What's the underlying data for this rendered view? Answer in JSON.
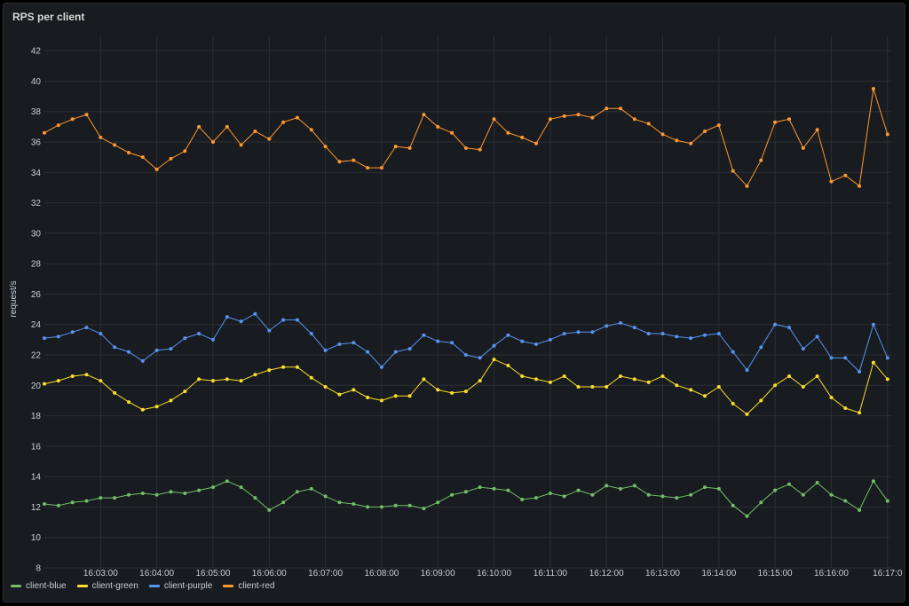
{
  "panel": {
    "title": "RPS per client"
  },
  "chart_data": {
    "type": "line",
    "title": "RPS per client",
    "xlabel": "",
    "ylabel": "request/s",
    "ylim": [
      8,
      43
    ],
    "yticks": [
      8,
      10,
      12,
      14,
      16,
      18,
      20,
      22,
      24,
      26,
      28,
      30,
      32,
      34,
      36,
      38,
      40,
      42
    ],
    "xlim": [
      "16:02:00",
      "16:17:00"
    ],
    "xticks": [
      "16:03:00",
      "16:04:00",
      "16:05:00",
      "16:06:00",
      "16:07:00",
      "16:08:00",
      "16:09:00",
      "16:10:00",
      "16:11:00",
      "16:12:00",
      "16:13:00",
      "16:14:00",
      "16:15:00",
      "16:16:00",
      "16:17:0"
    ],
    "x_start": "16:02:00",
    "x_step_seconds": 15,
    "grid": true,
    "legend_position": "bottom-left",
    "series": [
      {
        "name": "client-blue",
        "color": "#73bf69",
        "values": [
          12.2,
          12.1,
          12.3,
          12.4,
          12.6,
          12.6,
          12.8,
          12.9,
          12.8,
          13.0,
          12.9,
          13.1,
          13.3,
          13.7,
          13.3,
          12.6,
          11.8,
          12.3,
          13.0,
          13.2,
          12.7,
          12.3,
          12.2,
          12.0,
          12.0,
          12.1,
          12.1,
          11.9,
          12.3,
          12.8,
          13.0,
          13.3,
          13.2,
          13.1,
          12.5,
          12.6,
          12.9,
          12.7,
          13.1,
          12.8,
          13.4,
          13.2,
          13.4,
          12.8,
          12.7,
          12.6,
          12.8,
          13.3,
          13.2,
          12.1,
          11.4,
          12.3,
          13.1,
          13.5,
          12.8,
          13.6,
          12.8,
          12.4,
          11.8,
          13.7,
          12.4
        ]
      },
      {
        "name": "client-green",
        "color": "#fade2a",
        "values": [
          20.1,
          20.3,
          20.6,
          20.7,
          20.3,
          19.5,
          18.9,
          18.4,
          18.6,
          19.0,
          19.6,
          20.4,
          20.3,
          20.4,
          20.3,
          20.7,
          21.0,
          21.2,
          21.2,
          20.5,
          19.9,
          19.4,
          19.7,
          19.2,
          19.0,
          19.3,
          19.3,
          20.4,
          19.7,
          19.5,
          19.6,
          20.3,
          21.7,
          21.3,
          20.6,
          20.4,
          20.2,
          20.6,
          19.9,
          19.9,
          19.9,
          20.6,
          20.4,
          20.2,
          20.6,
          20.0,
          19.7,
          19.3,
          19.9,
          18.8,
          18.1,
          19.0,
          20.0,
          20.6,
          19.9,
          20.6,
          19.2,
          18.5,
          18.2,
          21.5,
          20.4
        ]
      },
      {
        "name": "client-purple",
        "color": "#5794f2",
        "values": [
          23.1,
          23.2,
          23.5,
          23.8,
          23.4,
          22.5,
          22.2,
          21.6,
          22.3,
          22.4,
          23.1,
          23.4,
          23.0,
          24.5,
          24.2,
          24.7,
          23.6,
          24.3,
          24.3,
          23.4,
          22.3,
          22.7,
          22.8,
          22.2,
          21.2,
          22.2,
          22.4,
          23.3,
          22.9,
          22.8,
          22.0,
          21.8,
          22.6,
          23.3,
          22.9,
          22.7,
          23.0,
          23.4,
          23.5,
          23.5,
          23.9,
          24.1,
          23.8,
          23.4,
          23.4,
          23.2,
          23.1,
          23.3,
          23.4,
          22.2,
          21.0,
          22.5,
          24.0,
          23.8,
          22.4,
          23.2,
          21.8,
          21.8,
          20.9,
          24.0,
          21.8
        ]
      },
      {
        "name": "client-red",
        "color": "#ff9830",
        "values": [
          36.6,
          37.1,
          37.5,
          37.8,
          36.3,
          35.8,
          35.3,
          35.0,
          34.2,
          34.9,
          35.4,
          37.0,
          36.0,
          37.0,
          35.8,
          36.7,
          36.2,
          37.3,
          37.6,
          36.8,
          35.7,
          34.7,
          34.8,
          34.3,
          34.3,
          35.7,
          35.6,
          37.8,
          37.0,
          36.6,
          35.6,
          35.5,
          37.5,
          36.6,
          36.3,
          35.9,
          37.5,
          37.7,
          37.8,
          37.6,
          38.2,
          38.2,
          37.5,
          37.2,
          36.5,
          36.1,
          35.9,
          36.7,
          37.1,
          34.1,
          33.1,
          34.8,
          37.3,
          37.5,
          35.6,
          36.8,
          33.4,
          33.8,
          33.1,
          39.5,
          36.5
        ]
      }
    ]
  }
}
